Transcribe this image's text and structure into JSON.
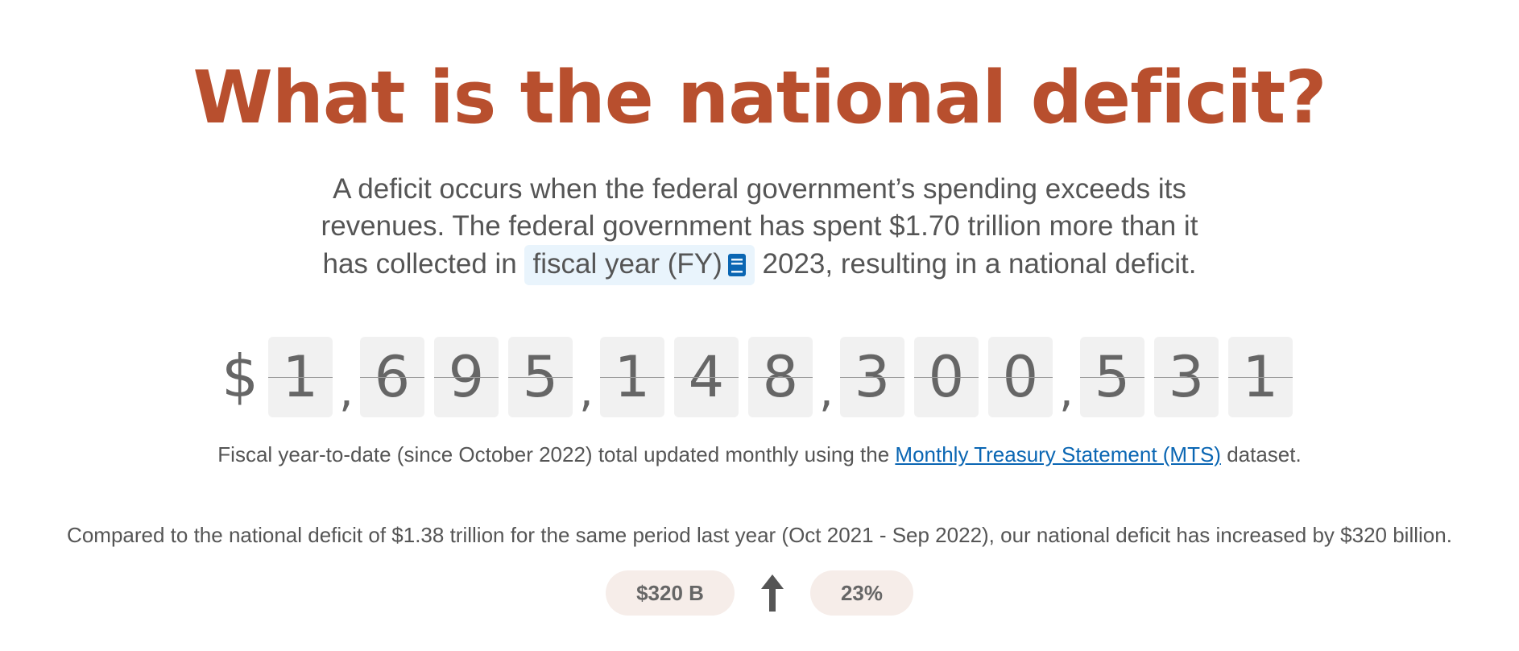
{
  "title": "What is the national deficit?",
  "intro": {
    "part1": "A deficit occurs when the federal government’s spending exceeds its revenues. The federal government has spent $1.70 trillion more than it has collected in ",
    "glossary_term": "fiscal year (FY)",
    "glossary_icon": "book-icon",
    "part2": " 2023, resulting in a national deficit."
  },
  "counter": {
    "currency": "$",
    "separator": ",",
    "groups": [
      [
        "1"
      ],
      [
        "6",
        "9",
        "5"
      ],
      [
        "1",
        "4",
        "8"
      ],
      [
        "3",
        "0",
        "0"
      ],
      [
        "5",
        "3",
        "1"
      ]
    ]
  },
  "source": {
    "prefix": "Fiscal year-to-date (since October 2022) total updated monthly using the ",
    "link_text": "Monthly Treasury Statement (MTS)",
    "suffix": " dataset."
  },
  "comparison": {
    "text": "Compared to the national deficit of $1.38 trillion for the same period last year (Oct 2021 - Sep 2022), our national deficit has increased by $320 billion."
  },
  "change": {
    "amount": "$320 B",
    "percent": "23%",
    "direction_icon": "arrow-up-icon"
  },
  "colors": {
    "title": "#b84f2e",
    "link": "#0a66b3",
    "glossary_bg": "#e9f4fc",
    "pill_bg": "#f6ede9"
  }
}
